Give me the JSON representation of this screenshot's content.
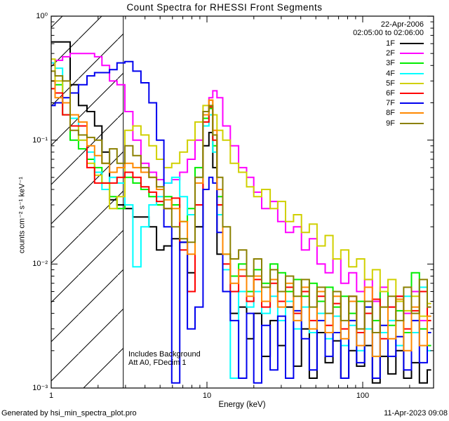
{
  "header": {
    "date": "22-Apr-2006",
    "time_range": "02:05:00 to 02:06:00"
  },
  "axes": {
    "x_label": "Energy (keV)",
    "y_label": "counts cm⁻² s⁻¹ keV⁻¹",
    "x_ticks": [
      "1",
      "10",
      "100"
    ],
    "y_ticks": [
      "10⁰",
      "10⁻¹",
      "10⁻²",
      "10⁻³"
    ]
  },
  "annotations": {
    "line1": "Includes Background",
    "line2": "Att A0, FDecim 1"
  },
  "footer": {
    "generated_by": "Generated by hsi_min_spectra_plot.pro",
    "timestamp": "11-Apr-2023 09:08"
  },
  "chart_data": {
    "type": "line",
    "title": "Count Spectra for RHESSI Front Segments",
    "xlabel": "Energy (keV)",
    "ylabel": "counts cm⁻² s⁻¹ keV⁻¹",
    "x_scale": "log",
    "y_scale": "log",
    "xlim": [
      1,
      285
    ],
    "ylim": [
      0.001,
      1
    ],
    "grid": false,
    "legend_position": "top-right",
    "line_style": "histogram-steps",
    "hatched_region_kev": [
      1,
      2.9
    ],
    "hatched_region_meaning": "energies below detector threshold (hatched)",
    "x_kev": [
      1.0,
      1.12,
      1.25,
      1.4,
      1.6,
      1.8,
      2.0,
      2.24,
      2.5,
      2.8,
      3.15,
      3.55,
      4.0,
      4.5,
      5.0,
      5.6,
      6.3,
      7.1,
      7.9,
      8.9,
      10.0,
      10.6,
      11.2,
      12.0,
      13.3,
      15.0,
      17.0,
      19.0,
      21.0,
      24.0,
      27.0,
      30.0,
      34.0,
      38.0,
      43.0,
      48.0,
      54.0,
      61.0,
      68.0,
      77.0,
      86.0,
      97.0,
      109.0,
      122.0,
      137.0,
      154.0,
      173.0,
      194.0,
      218.0,
      245.0,
      275.0
    ],
    "series": [
      {
        "name": "1F",
        "color": "#000000",
        "values": [
          0.62,
          0.62,
          0.62,
          0.28,
          0.19,
          0.17,
          0.13,
          0.08,
          0.033,
          0.03,
          0.028,
          0.024,
          0.024,
          0.02,
          0.013,
          0.014,
          0.016,
          0.015,
          0.0085,
          0.02,
          0.09,
          0.115,
          0.06,
          0.012,
          0.006,
          0.004,
          0.0045,
          0.0025,
          0.004,
          0.0018,
          0.0035,
          0.0022,
          0.0045,
          0.0015,
          0.003,
          0.0012,
          0.0028,
          0.0016,
          0.0024,
          0.0012,
          0.002,
          0.0015,
          0.0022,
          0.0011,
          0.0018,
          0.0013,
          0.002,
          0.0012,
          0.0016,
          0.0011,
          0.0014
        ]
      },
      {
        "name": "2F",
        "color": "#ff00ff",
        "values": [
          0.42,
          0.44,
          0.47,
          0.5,
          0.5,
          0.5,
          0.47,
          0.4,
          0.3,
          0.28,
          0.17,
          0.1,
          0.065,
          0.055,
          0.048,
          0.045,
          0.048,
          0.055,
          0.07,
          0.1,
          0.17,
          0.22,
          0.25,
          0.22,
          0.13,
          0.09,
          0.06,
          0.05,
          0.038,
          0.028,
          0.032,
          0.022,
          0.018,
          0.02,
          0.013,
          0.016,
          0.01,
          0.0085,
          0.011,
          0.007,
          0.0085,
          0.006,
          0.0075,
          0.005,
          0.0065,
          0.0045,
          0.0055,
          0.004,
          0.006,
          0.0035,
          0.0045
        ]
      },
      {
        "name": "3F",
        "color": "#00ee00",
        "values": [
          0.3,
          0.28,
          0.16,
          0.1,
          0.085,
          0.07,
          0.06,
          0.045,
          0.035,
          0.028,
          0.05,
          0.045,
          0.04,
          0.035,
          0.03,
          0.035,
          0.03,
          0.022,
          0.028,
          0.06,
          0.15,
          0.18,
          0.09,
          0.035,
          0.012,
          0.008,
          0.01,
          0.006,
          0.009,
          0.007,
          0.01,
          0.0085,
          0.006,
          0.0075,
          0.0055,
          0.007,
          0.005,
          0.0065,
          0.0045,
          0.0055,
          0.004,
          0.005,
          0.0045,
          0.0035,
          0.006,
          0.0032,
          0.0042,
          0.0028,
          0.0085,
          0.003,
          0.0022
        ]
      },
      {
        "name": "4F",
        "color": "#00ffff",
        "values": [
          0.42,
          0.38,
          0.2,
          0.15,
          0.1,
          0.08,
          0.055,
          0.04,
          0.05,
          0.045,
          0.03,
          0.0095,
          0.02,
          0.03,
          0.035,
          0.045,
          0.05,
          0.035,
          0.025,
          0.05,
          0.13,
          0.16,
          0.08,
          0.025,
          0.009,
          0.0012,
          0.006,
          0.0045,
          0.006,
          0.004,
          0.0055,
          0.0035,
          0.005,
          0.003,
          0.0045,
          0.0028,
          0.004,
          0.0025,
          0.0038,
          0.0022,
          0.0032,
          0.002,
          0.003,
          0.0018,
          0.0028,
          0.0035,
          0.0022,
          0.0055,
          0.0028,
          0.0065,
          0.002
        ]
      },
      {
        "name": "5F",
        "color": "#d0d000",
        "values": [
          0.45,
          0.3,
          0.2,
          0.13,
          0.1,
          0.065,
          0.052,
          0.045,
          0.028,
          0.035,
          0.12,
          0.13,
          0.11,
          0.09,
          0.07,
          0.06,
          0.065,
          0.08,
          0.1,
          0.14,
          0.19,
          0.21,
          0.16,
          0.12,
          0.1,
          0.065,
          0.055,
          0.042,
          0.035,
          0.04,
          0.028,
          0.032,
          0.022,
          0.025,
          0.018,
          0.021,
          0.014,
          0.017,
          0.011,
          0.013,
          0.0095,
          0.011,
          0.0075,
          0.009,
          0.006,
          0.0075,
          0.005,
          0.0042,
          0.0055,
          0.0038,
          0.0048
        ]
      },
      {
        "name": "6F",
        "color": "#ff0000",
        "values": [
          0.26,
          0.24,
          0.16,
          0.13,
          0.13,
          0.06,
          0.045,
          0.045,
          0.045,
          0.05,
          0.055,
          0.05,
          0.042,
          0.038,
          0.032,
          0.028,
          0.034,
          0.013,
          0.006,
          0.03,
          0.14,
          0.185,
          0.1,
          0.03,
          0.01,
          0.006,
          0.008,
          0.005,
          0.0075,
          0.0045,
          0.007,
          0.005,
          0.0065,
          0.004,
          0.006,
          0.0035,
          0.0055,
          0.0032,
          0.0048,
          0.003,
          0.0055,
          0.0028,
          0.004,
          0.0052,
          0.0025,
          0.0045,
          0.0055,
          0.003,
          0.0042,
          0.006,
          0.0035
        ]
      },
      {
        "name": "7F",
        "color": "#0000ee",
        "values": [
          0.19,
          0.2,
          0.22,
          0.24,
          0.28,
          0.33,
          0.35,
          0.35,
          0.37,
          0.42,
          0.43,
          0.36,
          0.29,
          0.2,
          0.1,
          0.02,
          0.0011,
          0.015,
          0.003,
          0.0045,
          0.04,
          0.05,
          0.045,
          0.018,
          0.006,
          0.0035,
          0.0012,
          0.004,
          0.0011,
          0.0032,
          0.0014,
          0.0038,
          0.0012,
          0.0042,
          0.0025,
          0.0014,
          0.0035,
          0.0018,
          0.0028,
          0.0012,
          0.0035,
          0.0016,
          0.0045,
          0.0012,
          0.0032,
          0.0018,
          0.0026,
          0.0014,
          0.0035,
          0.0016,
          0.0028
        ]
      },
      {
        "name": "8F",
        "color": "#ff8800",
        "values": [
          0.3,
          0.22,
          0.2,
          0.16,
          0.14,
          0.09,
          0.075,
          0.065,
          0.055,
          0.06,
          0.065,
          0.06,
          0.055,
          0.05,
          0.04,
          0.033,
          0.028,
          0.022,
          0.012,
          0.045,
          0.16,
          0.21,
          0.12,
          0.04,
          0.012,
          0.007,
          0.009,
          0.0055,
          0.008,
          0.005,
          0.0075,
          0.0045,
          0.007,
          0.0035,
          0.0065,
          0.003,
          0.006,
          0.0028,
          0.0055,
          0.0025,
          0.005,
          0.0022,
          0.0065,
          0.0018,
          0.0045,
          0.0025,
          0.0052,
          0.002,
          0.0045,
          0.0022,
          0.0038
        ]
      },
      {
        "name": "9F",
        "color": "#8b8000",
        "values": [
          0.36,
          0.33,
          0.3,
          0.12,
          0.11,
          0.105,
          0.1,
          0.065,
          0.085,
          0.065,
          0.09,
          0.075,
          0.06,
          0.05,
          0.042,
          0.028,
          0.02,
          0.016,
          0.015,
          0.05,
          0.17,
          0.19,
          0.11,
          0.05,
          0.02,
          0.011,
          0.013,
          0.008,
          0.011,
          0.0065,
          0.009,
          0.006,
          0.008,
          0.0055,
          0.0075,
          0.0045,
          0.0065,
          0.004,
          0.006,
          0.0035,
          0.0055,
          0.003,
          0.005,
          0.0028,
          0.0045,
          0.0055,
          0.0035,
          0.0065,
          0.004,
          0.0075,
          0.0045
        ]
      }
    ]
  }
}
